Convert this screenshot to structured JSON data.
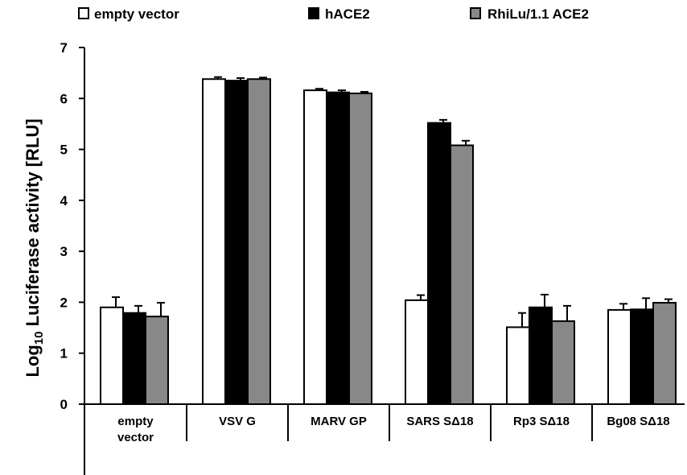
{
  "chart_data": {
    "type": "bar",
    "ylabel_prefix": "Log",
    "ylabel_subscript": "10",
    "ylabel_rest": " Luciferase activity [RLU]",
    "ylim": [
      0,
      7
    ],
    "yticks": [
      "0",
      "1",
      "2",
      "3",
      "4",
      "5",
      "6",
      "7"
    ],
    "legend_position": "top",
    "categories": [
      [
        "empty",
        "vector"
      ],
      [
        "VSV G"
      ],
      [
        "MARV GP"
      ],
      [
        "SARS SΔ18"
      ],
      [
        "Rp3 SΔ18"
      ],
      [
        "Bg08 SΔ18"
      ]
    ],
    "series": [
      {
        "name": "empty vector",
        "color": "#ffffff",
        "values": [
          1.9,
          6.38,
          6.16,
          2.04,
          1.51,
          1.85
        ],
        "errors": [
          0.2,
          0.04,
          0.03,
          0.1,
          0.28,
          0.12
        ]
      },
      {
        "name": "hACE2",
        "color": "#000000",
        "values": [
          1.79,
          6.35,
          6.12,
          5.52,
          1.9,
          1.86
        ],
        "errors": [
          0.14,
          0.05,
          0.04,
          0.06,
          0.25,
          0.22
        ]
      },
      {
        "name": "RhiLu/1.1 ACE2",
        "color": "#888888",
        "values": [
          1.72,
          6.38,
          6.1,
          5.08,
          1.63,
          1.99
        ],
        "errors": [
          0.27,
          0.03,
          0.03,
          0.09,
          0.3,
          0.07
        ]
      }
    ]
  }
}
